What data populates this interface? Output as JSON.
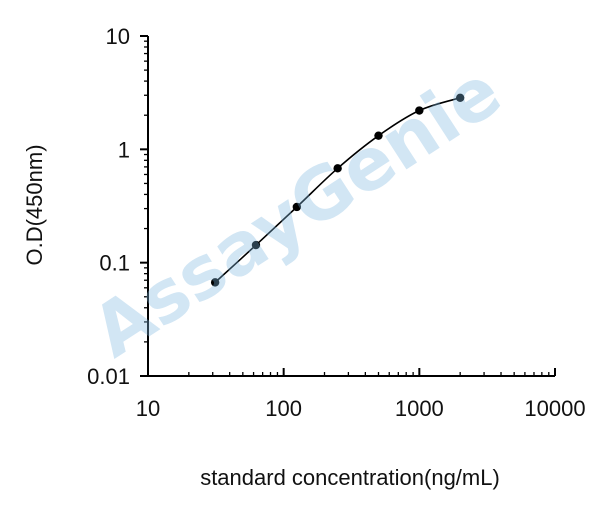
{
  "watermark": "AssayGenie",
  "chart_data": {
    "type": "scatter",
    "title": "",
    "xlabel": "standard concentration(ng/mL)",
    "ylabel": "O.D(450nm)",
    "x_scale": "log",
    "y_scale": "log",
    "xlim": [
      10,
      10000
    ],
    "ylim": [
      0.01,
      10
    ],
    "x_ticks": [
      "10",
      "100",
      "1000",
      "10000"
    ],
    "y_ticks": [
      "0.01",
      "0.1",
      "1",
      "10"
    ],
    "grid": false,
    "legend": "none",
    "series": [
      {
        "points": [
          {
            "x": 31.25,
            "y": 0.067
          },
          {
            "x": 62.5,
            "y": 0.143
          },
          {
            "x": 125,
            "y": 0.31
          },
          {
            "x": 250,
            "y": 0.68
          },
          {
            "x": 500,
            "y": 1.32
          },
          {
            "x": 1000,
            "y": 2.2
          },
          {
            "x": 2000,
            "y": 2.85
          }
        ],
        "fit_curve": true,
        "color": "#000000"
      }
    ]
  }
}
